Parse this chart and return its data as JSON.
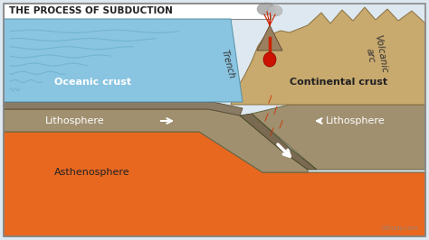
{
  "title": "THE PROCESS OF SUBDUCTION",
  "title_fontsize": 7.5,
  "title_color": "#222222",
  "bg_color": "#dde8f0",
  "ocean_color": "#89c4e0",
  "ocean_line_color": "#6aafc8",
  "oceanic_crust_top_color": "#8B7D65",
  "continental_crust_color": "#C8A96E",
  "continental_crust_dark": "#b09050",
  "lithosphere_color": "#A09070",
  "lithosphere_dark": "#7a6a50",
  "asthenosphere_color": "#E86820",
  "asthenosphere_dark": "#c85a10",
  "subduct_dark_color": "#7a6a52",
  "labels": {
    "oceanic_crust": "Oceanic crust",
    "continental_crust": "Continental crust",
    "lithosphere_left": "Lithosphere",
    "lithosphere_right": "Lithosphere",
    "asthenosphere": "Asthenosphere",
    "trench": "Trench",
    "volcanic_arc": "Volcanic\narc"
  },
  "label_color_white": "#ffffff",
  "label_color_dark": "#333333",
  "watermark": "OStudy.com",
  "border_color": "#888888"
}
